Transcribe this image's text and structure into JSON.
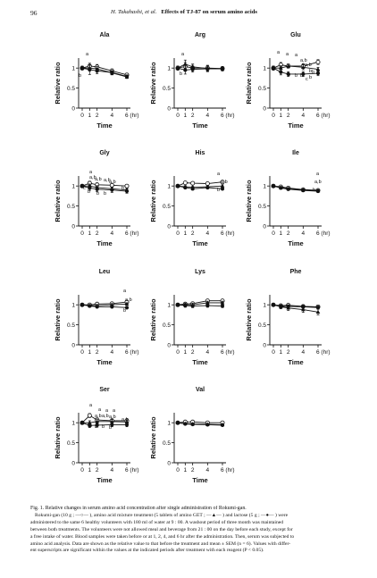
{
  "header": {
    "page_number": "96",
    "authors": "H. Takahashi, et al.",
    "title": "Effects of TJ-87 on serum amino acids"
  },
  "figure": {
    "caption_lines": [
      "Fig. 1.   Relative changes in serum amino acid concentration after single administration of Rokumi-gan.",
      "Rokumi-gan (10 g ; —○— ), amino acid mixture treatment (5 tablets of amino GET ; —▲— ) and lactose (5 g ; —●— ) were",
      "administered to the same 6 healthy volunteers with 180 ml of water at 9 : 00. A washout period of three month was maintained",
      "between both treatments. The volunteers were not allowed meal and beverage from 21 : 00 on the day before each study, except for",
      "a free intake of water. Blood samples were taken before or at 1, 2, 4, and 6 hr after the administration. Then, serum was subjected to",
      "amino acid analysis. Data are shown as the relative value to that before the treatment and mean ± SEM (n = 6). Values with differ-",
      "ent superscripts are significant within the values at the indicated periods after treatment with each reagent (P < 0.05)."
    ]
  },
  "colors": {
    "ink": "#111111",
    "background": "#ffffff"
  },
  "chart_data": [
    {
      "type": "line",
      "title": "Ala",
      "xlabel": "Time",
      "ylabel": "Relative ratio",
      "x": [
        0,
        1,
        2,
        4,
        6
      ],
      "x_ticks": [
        "0",
        "1",
        "2",
        "4",
        "6 (hr)"
      ],
      "ylim": [
        0,
        1.25
      ],
      "y_ticks": [
        "0",
        "0.5",
        "1"
      ],
      "series": [
        {
          "marker": "open-circle",
          "values": [
            1.0,
            1.05,
            1.03,
            0.93,
            0.83
          ],
          "errors": [
            0.05,
            0.07,
            0.06,
            0.05,
            0.04
          ]
        },
        {
          "marker": "triangle",
          "values": [
            1.0,
            1.0,
            0.98,
            0.88,
            0.78
          ],
          "errors": [
            0.04,
            0.07,
            0.06,
            0.05,
            0.04
          ]
        },
        {
          "marker": "filled-circle",
          "values": [
            1.0,
            0.96,
            0.93,
            0.89,
            0.79
          ],
          "errors": [
            0.04,
            0.12,
            0.07,
            0.05,
            0.04
          ]
        }
      ],
      "annotations": [
        "a",
        "b"
      ]
    },
    {
      "type": "line",
      "title": "Arg",
      "xlabel": "Time",
      "ylabel": "Relative ratio",
      "x": [
        0,
        1,
        2,
        4,
        6
      ],
      "x_ticks": [
        "0",
        "1",
        "2",
        "4",
        "6 (hr)"
      ],
      "ylim": [
        0,
        1.25
      ],
      "y_ticks": [
        "0",
        "0.5",
        "1"
      ],
      "series": [
        {
          "marker": "open-circle",
          "values": [
            1.0,
            1.04,
            1.0,
            1.0,
            0.99
          ],
          "errors": [
            0.05,
            0.1,
            0.07,
            0.07,
            0.05
          ]
        },
        {
          "marker": "triangle",
          "values": [
            1.0,
            1.1,
            1.03,
            0.99,
            0.98
          ],
          "errors": [
            0.05,
            0.1,
            0.07,
            0.07,
            0.05
          ]
        },
        {
          "marker": "filled-circle",
          "values": [
            1.0,
            0.95,
            0.97,
            0.98,
            0.98
          ],
          "errors": [
            0.05,
            0.1,
            0.07,
            0.07,
            0.05
          ]
        }
      ],
      "annotations": [
        "a",
        "b"
      ]
    },
    {
      "type": "line",
      "title": "Glu",
      "xlabel": "Time",
      "ylabel": "Relative ratio",
      "x": [
        0,
        1,
        2,
        4,
        6
      ],
      "x_ticks": [
        "0",
        "1",
        "2",
        "4",
        "6 (hr)"
      ],
      "ylim": [
        0,
        1.25
      ],
      "y_ticks": [
        "0",
        "0.5",
        "1"
      ],
      "series": [
        {
          "marker": "open-circle",
          "values": [
            1.0,
            1.08,
            1.05,
            1.05,
            1.15
          ],
          "errors": [
            0.05,
            0.06,
            0.05,
            0.06,
            0.06
          ]
        },
        {
          "marker": "triangle",
          "values": [
            1.0,
            1.0,
            1.05,
            1.02,
            0.97
          ],
          "errors": [
            0.05,
            0.06,
            0.05,
            0.06,
            0.05
          ]
        },
        {
          "marker": "filled-circle",
          "values": [
            1.0,
            0.9,
            0.85,
            0.85,
            0.87
          ],
          "errors": [
            0.05,
            0.07,
            0.06,
            0.06,
            0.06
          ]
        }
      ],
      "annotations": [
        "a",
        "a",
        "a",
        "a,b",
        "a,b",
        "b",
        "b",
        "b",
        "b",
        "b",
        "b",
        "c"
      ]
    },
    {
      "type": "line",
      "title": "Gly",
      "xlabel": "Time",
      "ylabel": "Relative ratio",
      "x": [
        0,
        1,
        2,
        4,
        6
      ],
      "x_ticks": [
        "0",
        "1",
        "2",
        "4",
        "6 (hr)"
      ],
      "ylim": [
        0,
        1.25
      ],
      "y_ticks": [
        "0",
        "0.5",
        "1"
      ],
      "series": [
        {
          "marker": "open-circle",
          "values": [
            1.0,
            1.07,
            1.03,
            1.02,
            1.0
          ],
          "errors": [
            0.04,
            0.05,
            0.05,
            0.04,
            0.04
          ]
        },
        {
          "marker": "triangle",
          "values": [
            1.0,
            1.0,
            0.96,
            0.93,
            0.9
          ],
          "errors": [
            0.04,
            0.05,
            0.05,
            0.04,
            0.04
          ]
        },
        {
          "marker": "filled-circle",
          "values": [
            1.0,
            0.95,
            0.92,
            0.9,
            0.87
          ],
          "errors": [
            0.04,
            0.06,
            0.06,
            0.06,
            0.05
          ]
        }
      ],
      "annotations": [
        "a",
        "a,b",
        "a,b",
        "a,b",
        "a,b",
        "b",
        "c",
        "b",
        "b",
        "b"
      ]
    },
    {
      "type": "line",
      "title": "His",
      "xlabel": "Time",
      "ylabel": "Relative ratio",
      "x": [
        0,
        1,
        2,
        4,
        6
      ],
      "x_ticks": [
        "0",
        "1",
        "2",
        "4",
        "6 (hr)"
      ],
      "ylim": [
        0,
        1.25
      ],
      "y_ticks": [
        "0",
        "0.5",
        "1"
      ],
      "series": [
        {
          "marker": "open-circle",
          "values": [
            1.0,
            1.08,
            1.07,
            1.06,
            1.1
          ],
          "errors": [
            0.03,
            0.03,
            0.03,
            0.03,
            0.03
          ]
        },
        {
          "marker": "triangle",
          "values": [
            1.0,
            0.98,
            0.97,
            0.98,
            1.0
          ],
          "errors": [
            0.03,
            0.03,
            0.03,
            0.03,
            0.03
          ]
        },
        {
          "marker": "filled-circle",
          "values": [
            1.0,
            0.96,
            0.93,
            0.96,
            0.93
          ],
          "errors": [
            0.03,
            0.03,
            0.03,
            0.03,
            0.03
          ]
        }
      ],
      "annotations": [
        "a",
        "a,b",
        "b"
      ]
    },
    {
      "type": "line",
      "title": "Ile",
      "xlabel": "Time",
      "ylabel": "Relative ratio",
      "x": [
        0,
        1,
        2,
        4,
        6
      ],
      "x_ticks": [
        "0",
        "1",
        "2",
        "4",
        "6 (hr)"
      ],
      "ylim": [
        0,
        1.25
      ],
      "y_ticks": [
        "0",
        "0.5",
        "1"
      ],
      "series": [
        {
          "marker": "open-circle",
          "values": [
            1.0,
            0.98,
            0.95,
            0.91,
            0.89
          ],
          "errors": [
            0.03,
            0.03,
            0.03,
            0.03,
            0.03
          ]
        },
        {
          "marker": "triangle",
          "values": [
            1.0,
            0.96,
            0.93,
            0.9,
            0.88
          ],
          "errors": [
            0.03,
            0.03,
            0.03,
            0.03,
            0.03
          ]
        },
        {
          "marker": "filled-circle",
          "values": [
            1.0,
            0.95,
            0.92,
            0.89,
            0.87
          ],
          "errors": [
            0.03,
            0.03,
            0.03,
            0.03,
            0.03
          ]
        }
      ],
      "annotations": [
        "a",
        "a,b",
        "b"
      ]
    },
    {
      "type": "line",
      "title": "Leu",
      "xlabel": "Time",
      "ylabel": "Relative ratio",
      "x": [
        0,
        1,
        2,
        4,
        6
      ],
      "x_ticks": [
        "0",
        "1",
        "2",
        "4",
        "6 (hr)"
      ],
      "ylim": [
        0,
        1.25
      ],
      "y_ticks": [
        "0",
        "0.5",
        "1"
      ],
      "series": [
        {
          "marker": "open-circle",
          "values": [
            1.0,
            1.0,
            1.02,
            1.03,
            1.07
          ],
          "errors": [
            0.03,
            0.03,
            0.03,
            0.03,
            0.03
          ]
        },
        {
          "marker": "triangle",
          "values": [
            1.0,
            0.98,
            0.98,
            1.0,
            1.02
          ],
          "errors": [
            0.03,
            0.03,
            0.03,
            0.03,
            0.03
          ]
        },
        {
          "marker": "filled-circle",
          "values": [
            1.0,
            0.97,
            0.95,
            0.95,
            0.93
          ],
          "errors": [
            0.03,
            0.03,
            0.03,
            0.03,
            0.03
          ]
        }
      ],
      "annotations": [
        "a",
        "a,b",
        "b"
      ]
    },
    {
      "type": "line",
      "title": "Lys",
      "xlabel": "Time",
      "ylabel": "Relative ratio",
      "x": [
        0,
        1,
        2,
        4,
        6
      ],
      "x_ticks": [
        "0",
        "1",
        "2",
        "4",
        "6 (hr)"
      ],
      "ylim": [
        0,
        1.25
      ],
      "y_ticks": [
        "0",
        "0.5",
        "1"
      ],
      "series": [
        {
          "marker": "open-circle",
          "values": [
            1.0,
            1.02,
            1.03,
            1.1,
            1.1
          ],
          "errors": [
            0.04,
            0.04,
            0.04,
            0.04,
            0.04
          ]
        },
        {
          "marker": "triangle",
          "values": [
            1.0,
            1.0,
            1.0,
            1.05,
            1.05
          ],
          "errors": [
            0.04,
            0.04,
            0.04,
            0.04,
            0.04
          ]
        },
        {
          "marker": "filled-circle",
          "values": [
            1.0,
            0.98,
            0.97,
            0.98,
            0.97
          ],
          "errors": [
            0.04,
            0.04,
            0.04,
            0.04,
            0.04
          ]
        }
      ],
      "annotations": []
    },
    {
      "type": "line",
      "title": "Phe",
      "xlabel": "Time",
      "ylabel": "Relative ratio",
      "x": [
        0,
        1,
        2,
        4,
        6
      ],
      "x_ticks": [
        "0",
        "1",
        "2",
        "4",
        "6 (hr)"
      ],
      "ylim": [
        0,
        1.25
      ],
      "y_ticks": [
        "0",
        "0.5",
        "1"
      ],
      "series": [
        {
          "marker": "open-circle",
          "values": [
            1.0,
            0.98,
            0.99,
            0.96,
            0.95
          ],
          "errors": [
            0.03,
            0.04,
            0.04,
            0.04,
            0.04
          ]
        },
        {
          "marker": "triangle",
          "values": [
            1.0,
            0.95,
            0.92,
            0.88,
            0.82
          ],
          "errors": [
            0.03,
            0.05,
            0.06,
            0.07,
            0.07
          ]
        },
        {
          "marker": "filled-circle",
          "values": [
            1.0,
            0.96,
            0.96,
            0.95,
            0.93
          ],
          "errors": [
            0.03,
            0.04,
            0.04,
            0.04,
            0.04
          ]
        }
      ],
      "annotations": []
    },
    {
      "type": "line",
      "title": "Ser",
      "xlabel": "Time",
      "ylabel": "Relative ratio",
      "x": [
        0,
        1,
        2,
        4,
        6
      ],
      "x_ticks": [
        "0",
        "1",
        "2",
        "4",
        "6 (hr)"
      ],
      "ylim": [
        0,
        1.25
      ],
      "y_ticks": [
        "0",
        "0.5",
        "1"
      ],
      "series": [
        {
          "marker": "open-circle",
          "values": [
            1.0,
            1.18,
            1.07,
            1.05,
            1.05
          ],
          "errors": [
            0.04,
            0.05,
            0.05,
            0.05,
            0.05
          ]
        },
        {
          "marker": "triangle",
          "values": [
            1.0,
            1.0,
            1.03,
            1.03,
            1.02
          ],
          "errors": [
            0.04,
            0.05,
            0.05,
            0.05,
            0.05
          ]
        },
        {
          "marker": "filled-circle",
          "values": [
            1.0,
            0.93,
            0.94,
            0.95,
            0.95
          ],
          "errors": [
            0.04,
            0.05,
            0.05,
            0.05,
            0.05
          ]
        }
      ],
      "annotations": [
        "a",
        "a",
        "a",
        "a",
        "a,b",
        "a,b",
        "a,b",
        "a,b",
        "b",
        "b",
        "b",
        "b"
      ]
    },
    {
      "type": "line",
      "title": "Val",
      "xlabel": "Time",
      "ylabel": "Relative ratio",
      "x": [
        0,
        1,
        2,
        4,
        6
      ],
      "x_ticks": [
        "0",
        "1",
        "2",
        "4",
        "6 (hr)"
      ],
      "ylim": [
        0,
        1.25
      ],
      "y_ticks": [
        "0",
        "0.5",
        "1"
      ],
      "series": [
        {
          "marker": "open-circle",
          "values": [
            1.0,
            1.02,
            1.02,
            1.0,
            1.0
          ],
          "errors": [
            0.02,
            0.02,
            0.02,
            0.02,
            0.02
          ]
        },
        {
          "marker": "triangle",
          "values": [
            1.0,
            0.98,
            0.97,
            0.96,
            0.95
          ],
          "errors": [
            0.02,
            0.02,
            0.02,
            0.02,
            0.02
          ]
        },
        {
          "marker": "filled-circle",
          "values": [
            1.0,
            0.97,
            0.96,
            0.95,
            0.94
          ],
          "errors": [
            0.02,
            0.02,
            0.02,
            0.02,
            0.02
          ]
        }
      ],
      "annotations": []
    }
  ]
}
